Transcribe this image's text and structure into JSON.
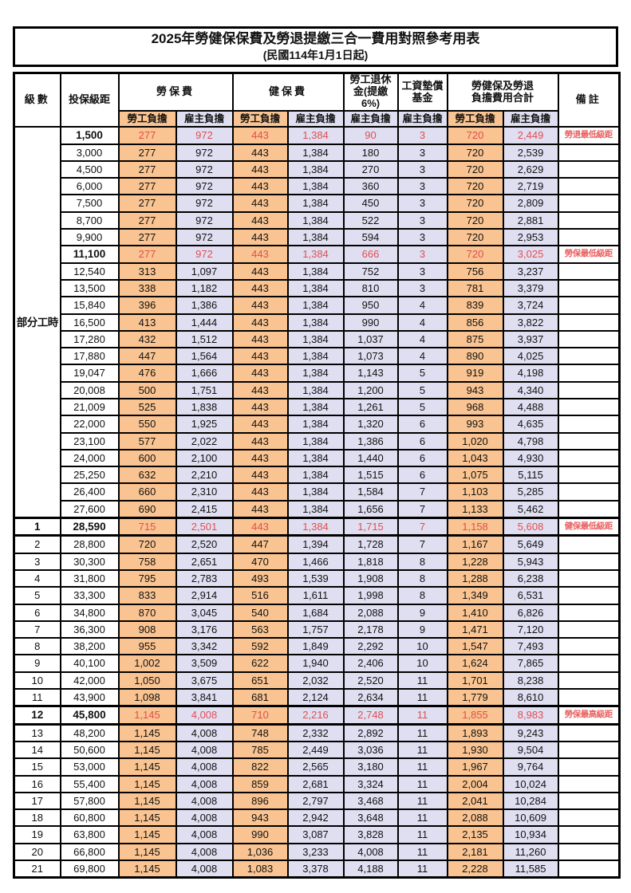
{
  "title": "2025年勞健保保費及勞退提繳三合一費用對照參考用表",
  "subtitle": "(民國114年1月1日起)",
  "colors": {
    "employee_col_bg": "#F9C491",
    "employer_col_bg": "#E0DFF2",
    "highlight_red": "#E04F4F",
    "border": "#000000"
  },
  "header": {
    "grade": "級數",
    "salary": "投保級距",
    "labor_ins": "勞保費",
    "health_ins": "健保費",
    "pension": "勞工退休\n金(提繳6%)",
    "wage_fund": "工資墊償\n基金",
    "total": "勞健保及勞退\n負擔費用合計",
    "remark": "備註",
    "sub_employee": "勞工負擔",
    "sub_employer": "雇主負擔"
  },
  "table": {
    "part_time_label": "部分工時",
    "rows": [
      {
        "grade": "",
        "salary": "1,500",
        "values": [
          "277",
          "972",
          "443",
          "1,384",
          "90",
          "3",
          "720",
          "2,449"
        ],
        "remark": "勞退最低級距",
        "red": true,
        "bold": true
      },
      {
        "grade": "",
        "salary": "3,000",
        "values": [
          "277",
          "972",
          "443",
          "1,384",
          "180",
          "3",
          "720",
          "2,539"
        ],
        "remark": ""
      },
      {
        "grade": "",
        "salary": "4,500",
        "values": [
          "277",
          "972",
          "443",
          "1,384",
          "270",
          "3",
          "720",
          "2,629"
        ],
        "remark": ""
      },
      {
        "grade": "",
        "salary": "6,000",
        "values": [
          "277",
          "972",
          "443",
          "1,384",
          "360",
          "3",
          "720",
          "2,719"
        ],
        "remark": ""
      },
      {
        "grade": "",
        "salary": "7,500",
        "values": [
          "277",
          "972",
          "443",
          "1,384",
          "450",
          "3",
          "720",
          "2,809"
        ],
        "remark": ""
      },
      {
        "grade": "",
        "salary": "8,700",
        "values": [
          "277",
          "972",
          "443",
          "1,384",
          "522",
          "3",
          "720",
          "2,881"
        ],
        "remark": ""
      },
      {
        "grade": "",
        "salary": "9,900",
        "values": [
          "277",
          "972",
          "443",
          "1,384",
          "594",
          "3",
          "720",
          "2,953"
        ],
        "remark": ""
      },
      {
        "grade": "",
        "salary": "11,100",
        "values": [
          "277",
          "972",
          "443",
          "1,384",
          "666",
          "3",
          "720",
          "3,025"
        ],
        "remark": "勞保最低級距",
        "red": true,
        "bold": true
      },
      {
        "grade": "",
        "salary": "12,540",
        "values": [
          "313",
          "1,097",
          "443",
          "1,384",
          "752",
          "3",
          "756",
          "3,237"
        ],
        "remark": ""
      },
      {
        "grade": "",
        "salary": "13,500",
        "values": [
          "338",
          "1,182",
          "443",
          "1,384",
          "810",
          "3",
          "781",
          "3,379"
        ],
        "remark": ""
      },
      {
        "grade": "",
        "salary": "15,840",
        "values": [
          "396",
          "1,386",
          "443",
          "1,384",
          "950",
          "4",
          "839",
          "3,724"
        ],
        "remark": ""
      },
      {
        "grade": "",
        "salary": "16,500",
        "values": [
          "413",
          "1,444",
          "443",
          "1,384",
          "990",
          "4",
          "856",
          "3,822"
        ],
        "remark": ""
      },
      {
        "grade": "",
        "salary": "17,280",
        "values": [
          "432",
          "1,512",
          "443",
          "1,384",
          "1,037",
          "4",
          "875",
          "3,937"
        ],
        "remark": ""
      },
      {
        "grade": "",
        "salary": "17,880",
        "values": [
          "447",
          "1,564",
          "443",
          "1,384",
          "1,073",
          "4",
          "890",
          "4,025"
        ],
        "remark": ""
      },
      {
        "grade": "",
        "salary": "19,047",
        "values": [
          "476",
          "1,666",
          "443",
          "1,384",
          "1,143",
          "5",
          "919",
          "4,198"
        ],
        "remark": ""
      },
      {
        "grade": "",
        "salary": "20,008",
        "values": [
          "500",
          "1,751",
          "443",
          "1,384",
          "1,200",
          "5",
          "943",
          "4,340"
        ],
        "remark": ""
      },
      {
        "grade": "",
        "salary": "21,009",
        "values": [
          "525",
          "1,838",
          "443",
          "1,384",
          "1,261",
          "5",
          "968",
          "4,488"
        ],
        "remark": ""
      },
      {
        "grade": "",
        "salary": "22,000",
        "values": [
          "550",
          "1,925",
          "443",
          "1,384",
          "1,320",
          "6",
          "993",
          "4,635"
        ],
        "remark": ""
      },
      {
        "grade": "",
        "salary": "23,100",
        "values": [
          "577",
          "2,022",
          "443",
          "1,384",
          "1,386",
          "6",
          "1,020",
          "4,798"
        ],
        "remark": ""
      },
      {
        "grade": "",
        "salary": "24,000",
        "values": [
          "600",
          "2,100",
          "443",
          "1,384",
          "1,440",
          "6",
          "1,043",
          "4,930"
        ],
        "remark": ""
      },
      {
        "grade": "",
        "salary": "25,250",
        "values": [
          "632",
          "2,210",
          "443",
          "1,384",
          "1,515",
          "6",
          "1,075",
          "5,115"
        ],
        "remark": ""
      },
      {
        "grade": "",
        "salary": "26,400",
        "values": [
          "660",
          "2,310",
          "443",
          "1,384",
          "1,584",
          "7",
          "1,103",
          "5,285"
        ],
        "remark": ""
      },
      {
        "grade": "",
        "salary": "27,600",
        "values": [
          "690",
          "2,415",
          "443",
          "1,384",
          "1,656",
          "7",
          "1,133",
          "5,462"
        ],
        "remark": ""
      },
      {
        "grade": "1",
        "salary": "28,590",
        "values": [
          "715",
          "2,501",
          "443",
          "1,384",
          "1,715",
          "7",
          "1,158",
          "5,608"
        ],
        "remark": "健保最低級距",
        "red": true,
        "bold": true,
        "sep": true
      },
      {
        "grade": "2",
        "salary": "28,800",
        "values": [
          "720",
          "2,520",
          "447",
          "1,394",
          "1,728",
          "7",
          "1,167",
          "5,649"
        ],
        "remark": ""
      },
      {
        "grade": "3",
        "salary": "30,300",
        "values": [
          "758",
          "2,651",
          "470",
          "1,466",
          "1,818",
          "8",
          "1,228",
          "5,943"
        ],
        "remark": ""
      },
      {
        "grade": "4",
        "salary": "31,800",
        "values": [
          "795",
          "2,783",
          "493",
          "1,539",
          "1,908",
          "8",
          "1,288",
          "6,238"
        ],
        "remark": ""
      },
      {
        "grade": "5",
        "salary": "33,300",
        "values": [
          "833",
          "2,914",
          "516",
          "1,611",
          "1,998",
          "8",
          "1,349",
          "6,531"
        ],
        "remark": ""
      },
      {
        "grade": "6",
        "salary": "34,800",
        "values": [
          "870",
          "3,045",
          "540",
          "1,684",
          "2,088",
          "9",
          "1,410",
          "6,826"
        ],
        "remark": ""
      },
      {
        "grade": "7",
        "salary": "36,300",
        "values": [
          "908",
          "3,176",
          "563",
          "1,757",
          "2,178",
          "9",
          "1,471",
          "7,120"
        ],
        "remark": ""
      },
      {
        "grade": "8",
        "salary": "38,200",
        "values": [
          "955",
          "3,342",
          "592",
          "1,849",
          "2,292",
          "10",
          "1,547",
          "7,493"
        ],
        "remark": ""
      },
      {
        "grade": "9",
        "salary": "40,100",
        "values": [
          "1,002",
          "3,509",
          "622",
          "1,940",
          "2,406",
          "10",
          "1,624",
          "7,865"
        ],
        "remark": ""
      },
      {
        "grade": "10",
        "salary": "42,000",
        "values": [
          "1,050",
          "3,675",
          "651",
          "2,032",
          "2,520",
          "11",
          "1,701",
          "8,238"
        ],
        "remark": ""
      },
      {
        "grade": "11",
        "salary": "43,900",
        "values": [
          "1,098",
          "3,841",
          "681",
          "2,124",
          "2,634",
          "11",
          "1,779",
          "8,610"
        ],
        "remark": ""
      },
      {
        "grade": "12",
        "salary": "45,800",
        "values": [
          "1,145",
          "4,008",
          "710",
          "2,216",
          "2,748",
          "11",
          "1,855",
          "8,983"
        ],
        "remark": "勞保最高級距",
        "red": true,
        "bold": true,
        "sep": true
      },
      {
        "grade": "13",
        "salary": "48,200",
        "values": [
          "1,145",
          "4,008",
          "748",
          "2,332",
          "2,892",
          "11",
          "1,893",
          "9,243"
        ],
        "remark": ""
      },
      {
        "grade": "14",
        "salary": "50,600",
        "values": [
          "1,145",
          "4,008",
          "785",
          "2,449",
          "3,036",
          "11",
          "1,930",
          "9,504"
        ],
        "remark": ""
      },
      {
        "grade": "15",
        "salary": "53,000",
        "values": [
          "1,145",
          "4,008",
          "822",
          "2,565",
          "3,180",
          "11",
          "1,967",
          "9,764"
        ],
        "remark": ""
      },
      {
        "grade": "16",
        "salary": "55,400",
        "values": [
          "1,145",
          "4,008",
          "859",
          "2,681",
          "3,324",
          "11",
          "2,004",
          "10,024"
        ],
        "remark": ""
      },
      {
        "grade": "17",
        "salary": "57,800",
        "values": [
          "1,145",
          "4,008",
          "896",
          "2,797",
          "3,468",
          "11",
          "2,041",
          "10,284"
        ],
        "remark": ""
      },
      {
        "grade": "18",
        "salary": "60,800",
        "values": [
          "1,145",
          "4,008",
          "943",
          "2,942",
          "3,648",
          "11",
          "2,088",
          "10,609"
        ],
        "remark": ""
      },
      {
        "grade": "19",
        "salary": "63,800",
        "values": [
          "1,145",
          "4,008",
          "990",
          "3,087",
          "3,828",
          "11",
          "2,135",
          "10,934"
        ],
        "remark": ""
      },
      {
        "grade": "20",
        "salary": "66,800",
        "values": [
          "1,145",
          "4,008",
          "1,036",
          "3,233",
          "4,008",
          "11",
          "2,181",
          "11,260"
        ],
        "remark": ""
      },
      {
        "grade": "21",
        "salary": "69,800",
        "values": [
          "1,145",
          "4,008",
          "1,083",
          "3,378",
          "4,188",
          "11",
          "2,228",
          "11,585"
        ],
        "remark": ""
      }
    ]
  }
}
